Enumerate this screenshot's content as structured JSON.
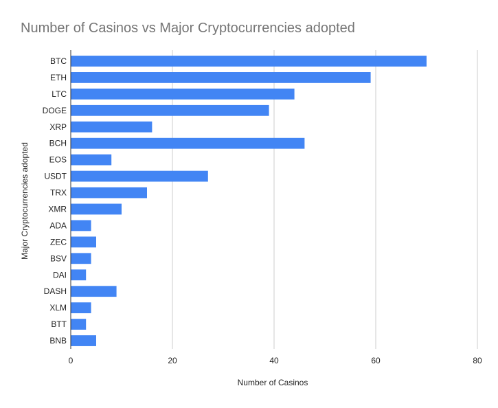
{
  "chart_data": {
    "type": "bar",
    "orientation": "horizontal",
    "title": "Number of Casinos vs Major Cryptocurrencies adopted",
    "xlabel": "Number of Casinos",
    "ylabel": "Major Cryptocurrencies adopted",
    "xlim": [
      0,
      80
    ],
    "xticks": [
      0,
      20,
      40,
      60,
      80
    ],
    "grid": true,
    "legend": "none",
    "bar_color": "#4285f4",
    "categories": [
      "BTC",
      "ETH",
      "LTC",
      "DOGE",
      "XRP",
      "BCH",
      "EOS",
      "USDT",
      "TRX",
      "XMR",
      "ADA",
      "ZEC",
      "BSV",
      "DAI",
      "DASH",
      "XLM",
      "BTT",
      "BNB"
    ],
    "values": [
      70,
      59,
      44,
      39,
      16,
      46,
      8,
      27,
      15,
      10,
      4,
      5,
      4,
      3,
      9,
      4,
      3,
      5
    ]
  }
}
